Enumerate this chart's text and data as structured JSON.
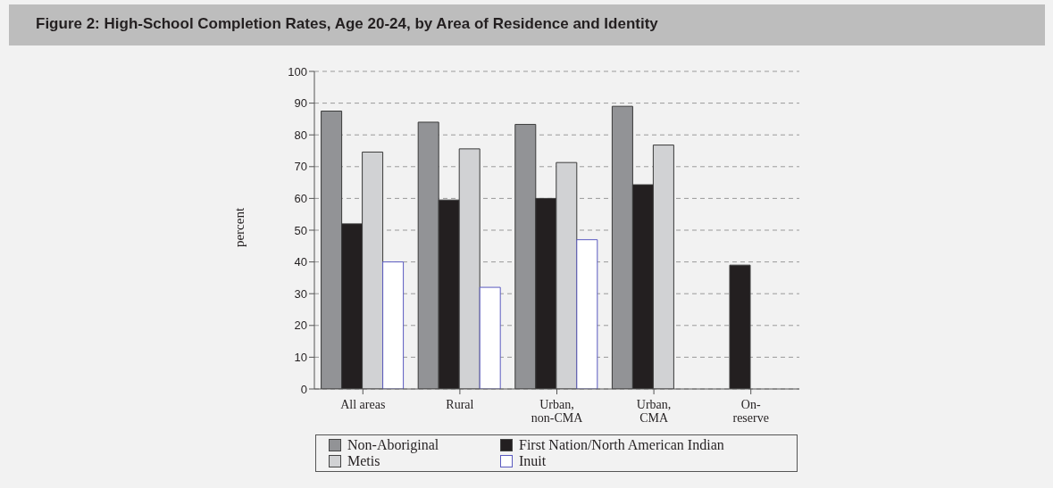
{
  "chart_data": {
    "type": "bar",
    "title": "Figure 2: High-School Completion Rates, Age 20-24, by Area of Residence and Identity",
    "ylabel": "percent",
    "categories": [
      "All areas",
      "Rural",
      "Urban,\nnon-CMA",
      "Urban,\nCMA",
      "On-\nreserve"
    ],
    "series": [
      {
        "name": "Non-Aboriginal",
        "color": "#929396",
        "values": [
          87.5,
          84,
          83.3,
          89,
          null
        ]
      },
      {
        "name": "First Nation/North American Indian",
        "color": "#231f20",
        "values": [
          52,
          59.5,
          60,
          64.3,
          39
        ]
      },
      {
        "name": "Metis",
        "color": "#d1d2d4",
        "values": [
          74.6,
          75.6,
          71.3,
          76.8,
          null
        ]
      },
      {
        "name": "Inuit",
        "color": "#ffffff",
        "values": [
          40,
          32,
          47,
          null,
          null
        ]
      }
    ],
    "ylim": [
      0,
      100
    ],
    "yticks": [
      0,
      10,
      20,
      30,
      40,
      50,
      60,
      70,
      80,
      90,
      100
    ],
    "grid": "y",
    "legend": "bottom"
  }
}
